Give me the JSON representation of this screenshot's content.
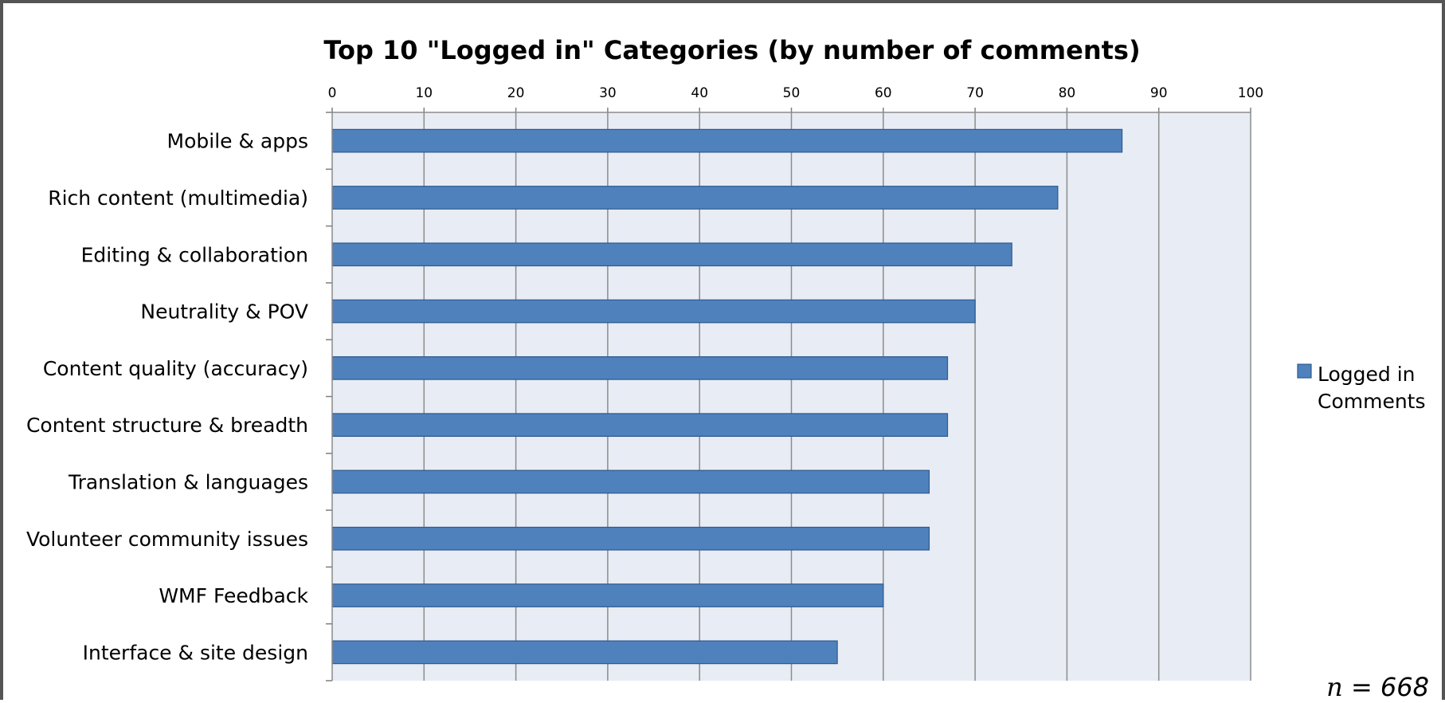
{
  "chart_data": {
    "type": "bar",
    "orientation": "horizontal",
    "title": "Top 10 \"Logged in\" Categories (by number of comments)",
    "categories": [
      "Mobile & apps",
      "Rich content (multimedia)",
      "Editing & collaboration",
      "Neutrality & POV",
      "Content quality (accuracy)",
      "Content structure & breadth",
      "Translation & languages",
      "Volunteer community issues",
      "WMF Feedback",
      "Interface & site design"
    ],
    "series": [
      {
        "name": "Logged in Comments",
        "values": [
          86,
          79,
          74,
          70,
          67,
          67,
          65,
          65,
          60,
          55
        ]
      }
    ],
    "xlim": [
      0,
      100
    ],
    "xticks": [
      0,
      10,
      20,
      30,
      40,
      50,
      60,
      70,
      80,
      90,
      100
    ],
    "xaxis_position": "top",
    "grid": true,
    "legend_position": "right",
    "colors": {
      "bar": "#4F81BD",
      "bar_edge": "#2E5A8E",
      "plot_bg": "#E8ECF4",
      "grid": "#8C8C8C"
    }
  },
  "legend": {
    "line1": "Logged in",
    "line2": "Comments"
  },
  "note": {
    "n_symbol": "n",
    "rest": " = 668"
  }
}
